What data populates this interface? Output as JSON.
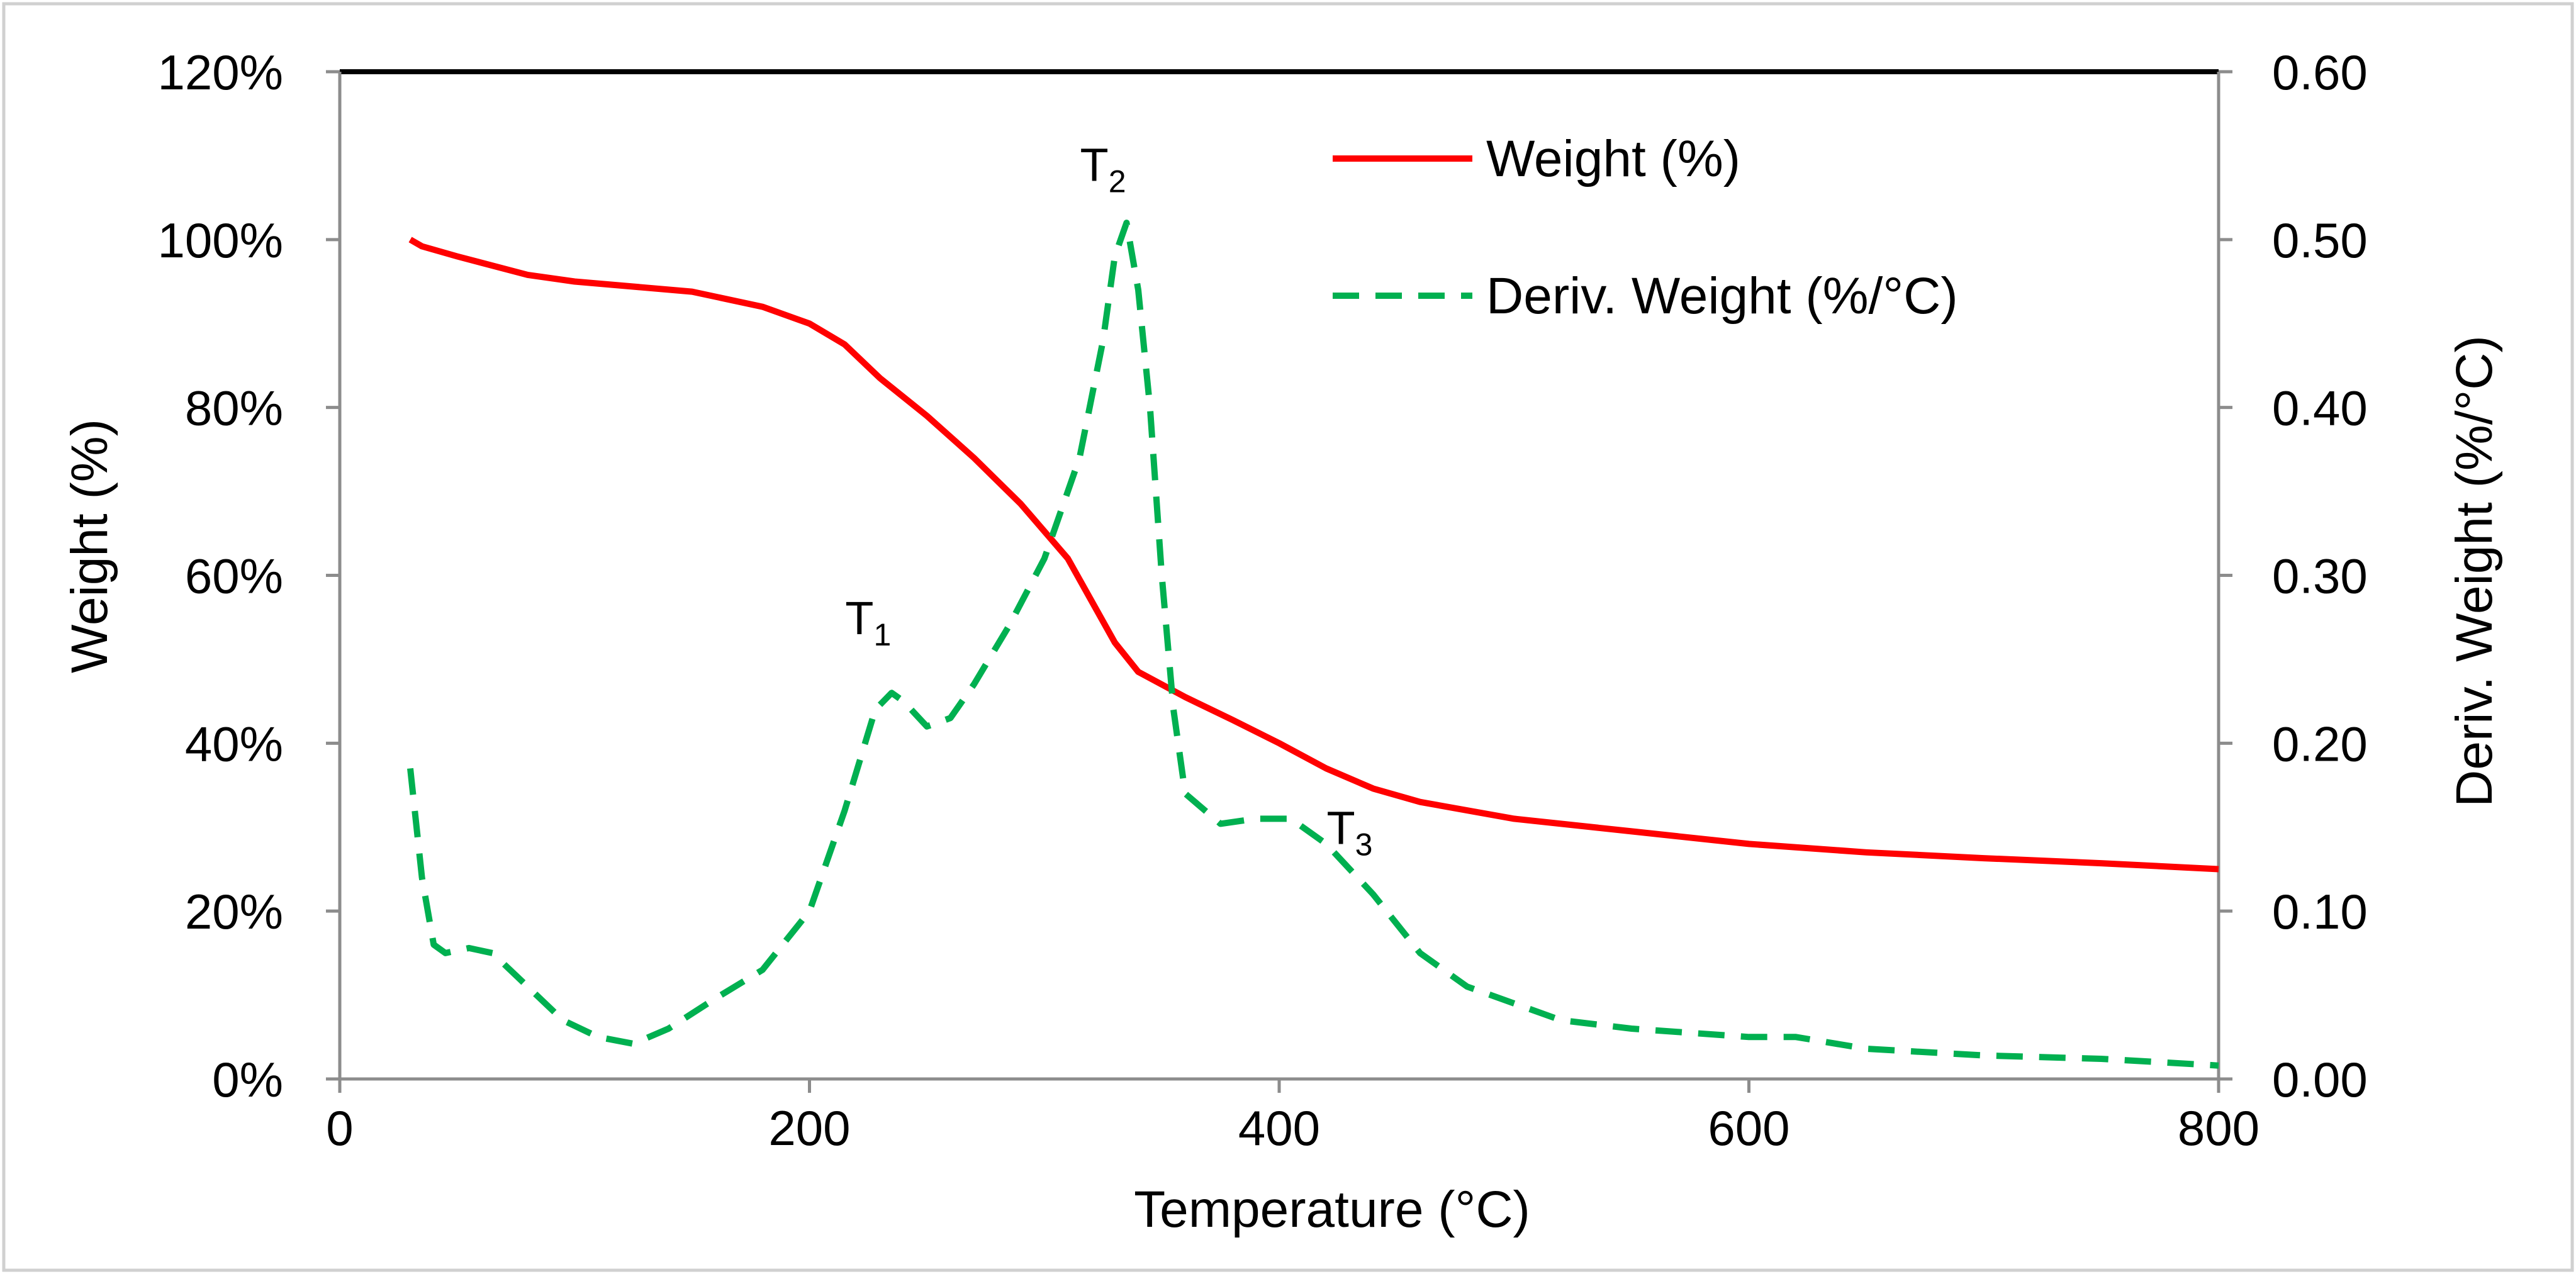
{
  "chart_data": {
    "type": "line",
    "title": "",
    "xlabel": "Temperature (°C)",
    "ylabel": "Weight (%)",
    "y2label": "Deriv. Weight (%/°C)",
    "xlim": [
      0,
      800
    ],
    "ylim": [
      0,
      120
    ],
    "y2lim": [
      0,
      0.6
    ],
    "grid": false,
    "legend": "top-right",
    "x_ticks": [
      "0",
      "200",
      "400",
      "600",
      "800"
    ],
    "x_tick_values": [
      0,
      200,
      400,
      600,
      800
    ],
    "y_ticks": [
      "0%",
      "20%",
      "40%",
      "60%",
      "80%",
      "100%",
      "120%"
    ],
    "y_tick_values": [
      0,
      20,
      40,
      60,
      80,
      100,
      120
    ],
    "y2_ticks": [
      "0.00",
      "0.10",
      "0.20",
      "0.30",
      "0.40",
      "0.50",
      "0.60"
    ],
    "y2_tick_values": [
      0,
      0.1,
      0.2,
      0.3,
      0.4,
      0.5,
      0.6
    ],
    "series": [
      {
        "name": "Weight (%)",
        "axis": "left",
        "color": "#ff0000",
        "style": "solid",
        "x": [
          30,
          35,
          50,
          80,
          100,
          150,
          180,
          200,
          215,
          230,
          250,
          270,
          290,
          310,
          320,
          330,
          340,
          360,
          380,
          400,
          420,
          440,
          460,
          500,
          550,
          600,
          650,
          700,
          750,
          800
        ],
        "y": [
          100,
          99.2,
          98,
          95.8,
          95,
          93.8,
          92,
          90,
          87.5,
          83.5,
          79,
          74,
          68.5,
          62,
          57,
          52,
          48.5,
          45.5,
          42.8,
          40,
          37,
          34.6,
          33,
          31,
          29.5,
          28,
          27,
          26.3,
          25.7,
          25
        ]
      },
      {
        "name": "Deriv. Weight (%/°C)",
        "axis": "right",
        "color": "#00b050",
        "style": "dashed",
        "x": [
          30,
          35,
          40,
          45,
          55,
          65,
          80,
          95,
          110,
          125,
          140,
          160,
          180,
          200,
          215,
          228,
          235,
          240,
          250,
          260,
          270,
          285,
          300,
          315,
          325,
          330,
          335,
          340,
          345,
          350,
          355,
          360,
          375,
          390,
          405,
          420,
          440,
          460,
          480,
          500,
          520,
          550,
          600,
          620,
          650,
          700,
          750,
          800
        ],
        "y": [
          0.185,
          0.12,
          0.08,
          0.075,
          0.078,
          0.075,
          0.055,
          0.035,
          0.025,
          0.021,
          0.03,
          0.048,
          0.065,
          0.1,
          0.16,
          0.22,
          0.23,
          0.225,
          0.21,
          0.215,
          0.235,
          0.27,
          0.31,
          0.37,
          0.44,
          0.49,
          0.51,
          0.47,
          0.4,
          0.3,
          0.22,
          0.17,
          0.152,
          0.155,
          0.155,
          0.14,
          0.11,
          0.075,
          0.055,
          0.045,
          0.035,
          0.03,
          0.025,
          0.025,
          0.018,
          0.014,
          0.012,
          0.008
        ]
      }
    ],
    "annotations": [
      {
        "base": "T",
        "sub": "1",
        "x": 225,
        "y": 0.265,
        "axis": "right"
      },
      {
        "base": "T",
        "sub": "2",
        "x": 325,
        "y": 0.535,
        "axis": "right"
      },
      {
        "base": "T",
        "sub": "3",
        "x": 430,
        "y": 0.14,
        "axis": "right"
      }
    ]
  }
}
